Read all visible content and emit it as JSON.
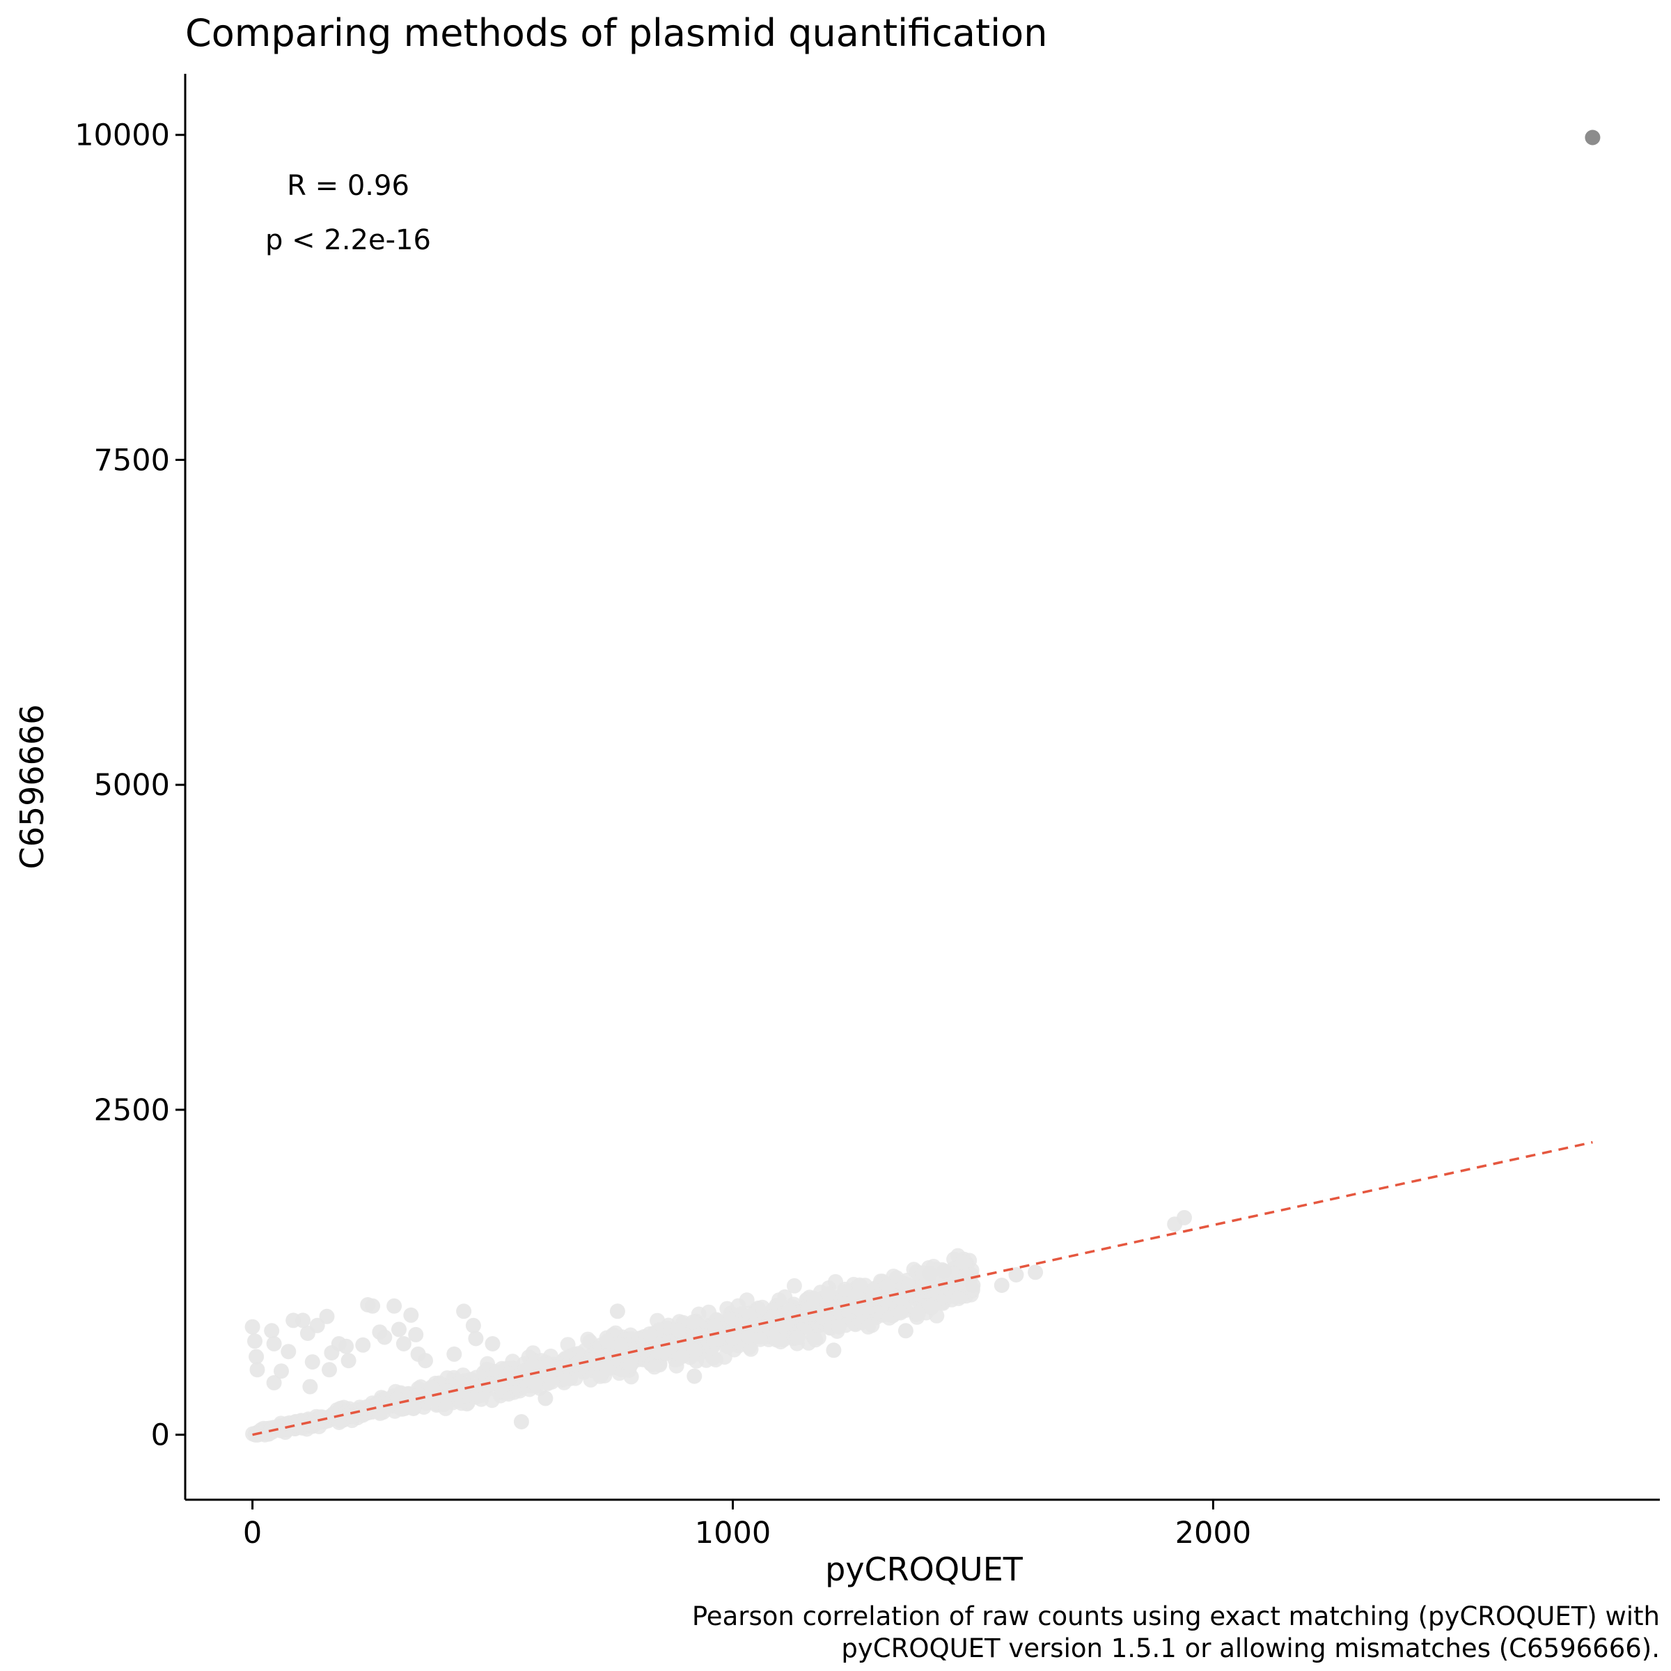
{
  "chart_data": {
    "type": "scatter",
    "title": "Comparing methods of plasmid quantification",
    "xlabel": "pyCROQUET",
    "ylabel": "C6596666",
    "caption": [
      "Pearson correlation of raw counts using exact matching (pyCROQUET) with",
      "pyCROQUET version 1.5.1 or allowing mismatches (C6596666)."
    ],
    "xlim": [
      -140,
      2930
    ],
    "ylim": [
      -500,
      10470
    ],
    "x_ticks": [
      0,
      1000,
      2000
    ],
    "x_tick_labels": [
      "0",
      "1000",
      "2000"
    ],
    "y_ticks": [
      0,
      2500,
      5000,
      7500,
      10000
    ],
    "y_tick_labels": [
      "0",
      "2500",
      "5000",
      "7500",
      "10000"
    ],
    "grid": false,
    "legend": "none",
    "annotations": {
      "r": "R = 0.96",
      "p": "p < 2.2e-16"
    },
    "annotation_anchor": {
      "x": 200,
      "y": 9600
    },
    "regression_line": {
      "style": "dashed",
      "color": "#e5573f",
      "x": [
        0,
        2790
      ],
      "y": [
        0,
        2250
      ]
    },
    "highlight_point": {
      "x": 2790,
      "y": 9980,
      "color": "#8c8c8c"
    },
    "background_cloud": {
      "color": "#e6e6e6",
      "description_count_estimate": "thousands",
      "main_band": {
        "x_range": [
          0,
          1500
        ],
        "slope": 0.8,
        "spread": 140
      },
      "outlier_points": [
        {
          "x": 0,
          "y": 830
        },
        {
          "x": 5,
          "y": 720
        },
        {
          "x": 8,
          "y": 600
        },
        {
          "x": 10,
          "y": 500
        },
        {
          "x": 40,
          "y": 800
        },
        {
          "x": 45,
          "y": 700
        },
        {
          "x": 45,
          "y": 400
        },
        {
          "x": 60,
          "y": 490
        },
        {
          "x": 75,
          "y": 640
        },
        {
          "x": 85,
          "y": 880
        },
        {
          "x": 105,
          "y": 880
        },
        {
          "x": 115,
          "y": 780
        },
        {
          "x": 120,
          "y": 370
        },
        {
          "x": 125,
          "y": 560
        },
        {
          "x": 135,
          "y": 840
        },
        {
          "x": 155,
          "y": 910
        },
        {
          "x": 160,
          "y": 500
        },
        {
          "x": 165,
          "y": 630
        },
        {
          "x": 180,
          "y": 700
        },
        {
          "x": 195,
          "y": 680
        },
        {
          "x": 200,
          "y": 570
        },
        {
          "x": 230,
          "y": 690
        },
        {
          "x": 240,
          "y": 1000
        },
        {
          "x": 250,
          "y": 990
        },
        {
          "x": 265,
          "y": 790
        },
        {
          "x": 275,
          "y": 750
        },
        {
          "x": 295,
          "y": 990
        },
        {
          "x": 305,
          "y": 810
        },
        {
          "x": 315,
          "y": 700
        },
        {
          "x": 330,
          "y": 920
        },
        {
          "x": 340,
          "y": 770
        },
        {
          "x": 345,
          "y": 620
        },
        {
          "x": 360,
          "y": 570
        },
        {
          "x": 420,
          "y": 620
        },
        {
          "x": 440,
          "y": 950
        },
        {
          "x": 460,
          "y": 840
        },
        {
          "x": 465,
          "y": 740
        },
        {
          "x": 500,
          "y": 700
        },
        {
          "x": 560,
          "y": 100
        },
        {
          "x": 610,
          "y": 280
        },
        {
          "x": 760,
          "y": 950
        },
        {
          "x": 920,
          "y": 450
        },
        {
          "x": 1210,
          "y": 650
        },
        {
          "x": 1360,
          "y": 800
        },
        {
          "x": 1410,
          "y": 1240
        },
        {
          "x": 1440,
          "y": 1260
        },
        {
          "x": 1500,
          "y": 1150
        },
        {
          "x": 1560,
          "y": 1150
        },
        {
          "x": 1590,
          "y": 1230
        },
        {
          "x": 1630,
          "y": 1250
        },
        {
          "x": 1920,
          "y": 1620
        },
        {
          "x": 1940,
          "y": 1670
        }
      ]
    }
  }
}
